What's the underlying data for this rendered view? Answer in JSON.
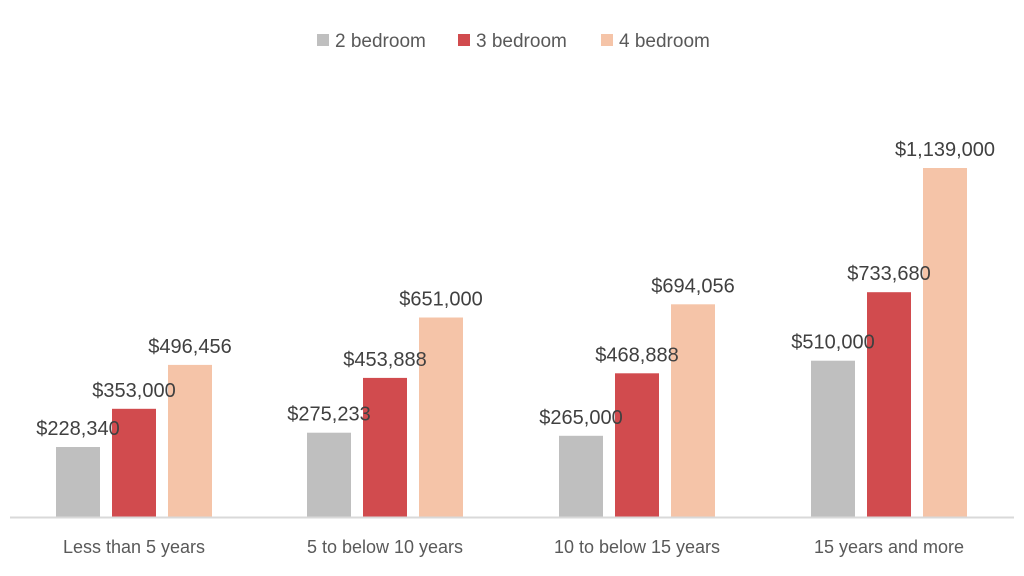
{
  "chart_data": {
    "type": "bar",
    "title": "",
    "xlabel": "",
    "ylabel": "",
    "categories": [
      "Less than 5 years",
      "5 to below 10 years",
      "10 to below 15 years",
      "15 years and more"
    ],
    "series": [
      {
        "name": "2 bedroom",
        "color": "#bfbfbf",
        "values": [
          228340,
          275233,
          265000,
          510000
        ],
        "labels": [
          "$228,340",
          "$275,233",
          "$265,000",
          "$510,000"
        ]
      },
      {
        "name": "3 bedroom",
        "color": "#d14b4e",
        "values": [
          353000,
          453888,
          468888,
          733680
        ],
        "labels": [
          "$353,000",
          "$453,888",
          "$468,888",
          "$733,680"
        ]
      },
      {
        "name": "4 bedroom",
        "color": "#f5c4a8",
        "values": [
          496456,
          651000,
          694056,
          1139000
        ],
        "labels": [
          "$496,456",
          "$651,000",
          "$694,056",
          "$1,139,000"
        ]
      }
    ],
    "ylim": [
      0,
      1139000
    ],
    "grid": false,
    "legend_position": "top-center",
    "axis_line_color": "#d9d9d9"
  }
}
